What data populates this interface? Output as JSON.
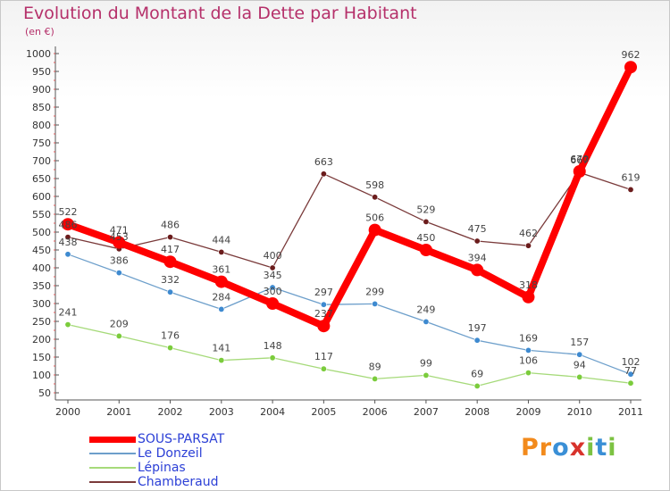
{
  "title": "Evolution du Montant de la Dette par Habitant",
  "subtitle": "(en €)",
  "logo": {
    "text": "Proxiti",
    "letters": [
      {
        "ch": "P",
        "color": "#f28a1c"
      },
      {
        "ch": "r",
        "color": "#f28a1c"
      },
      {
        "ch": "o",
        "color": "#3a8fd6"
      },
      {
        "ch": "x",
        "color": "#d8332c"
      },
      {
        "ch": "i",
        "color": "#7cc242"
      },
      {
        "ch": "t",
        "color": "#3a8fd6"
      },
      {
        "ch": "i",
        "color": "#7cc242"
      }
    ]
  },
  "chart_data": {
    "type": "line",
    "title": "Evolution du Montant de la Dette par Habitant",
    "subtitle": "(en €)",
    "x": [
      "2000",
      "2001",
      "2002",
      "2003",
      "2004",
      "2005",
      "2006",
      "2007",
      "2008",
      "2009",
      "2010",
      "2011"
    ],
    "ylim": [
      50,
      1000
    ],
    "yticks": [
      50,
      100,
      150,
      200,
      250,
      300,
      350,
      400,
      450,
      500,
      550,
      600,
      650,
      700,
      750,
      800,
      850,
      900,
      950,
      1000
    ],
    "grid": false,
    "legend_position": "bottom-left",
    "series": [
      {
        "name": "SOUS-PARSAT",
        "color": "#ff0000",
        "marker": "#ff0000",
        "width": 8,
        "values": [
          522,
          471,
          417,
          361,
          300,
          237,
          506,
          450,
          394,
          318,
          670,
          962
        ]
      },
      {
        "name": "Le Donzeil",
        "color": "#6d9fcb",
        "marker": "#3e8ad0",
        "width": 1.3,
        "values": [
          438,
          386,
          332,
          284,
          345,
          297,
          299,
          249,
          197,
          169,
          157,
          102
        ]
      },
      {
        "name": "Lépinas",
        "color": "#a6da7a",
        "marker": "#7bcc3c",
        "width": 1.3,
        "values": [
          241,
          209,
          176,
          141,
          148,
          117,
          89,
          99,
          69,
          106,
          94,
          77
        ]
      },
      {
        "name": "Chamberaud",
        "color": "#7a3a3a",
        "marker": "#6b1c1c",
        "width": 1.3,
        "values": [
          486,
          453,
          486,
          444,
          400,
          663,
          598,
          529,
          475,
          462,
          667,
          619
        ]
      }
    ]
  }
}
